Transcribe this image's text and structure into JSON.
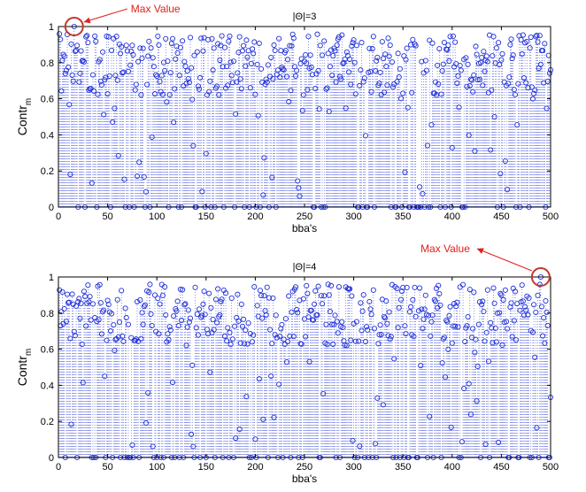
{
  "chart_data": [
    {
      "type": "scatter",
      "title": "|Θ|=3",
      "xlabel": "bba's",
      "ylabel": "Contr",
      "ylabel_sub": "m",
      "xlim": [
        0,
        500
      ],
      "ylim": [
        0,
        1
      ],
      "xticks": [
        "0",
        "50",
        "100",
        "150",
        "200",
        "250",
        "300",
        "350",
        "400",
        "450",
        "500"
      ],
      "yticks": [
        "0",
        "0.2",
        "0.4",
        "0.6",
        "0.8",
        "1"
      ],
      "grid": false,
      "marker": "circle",
      "color": "#1f2fd6",
      "stems": "dotted",
      "annotation": {
        "text": "Max Value",
        "x": 16,
        "y": 1.0
      },
      "seed": 3
    },
    {
      "type": "scatter",
      "title": "|Θ|=4",
      "xlabel": "bba's",
      "ylabel": "Contr",
      "ylabel_sub": "m",
      "xlim": [
        0,
        500
      ],
      "ylim": [
        0,
        1
      ],
      "xticks": [
        "0",
        "50",
        "100",
        "150",
        "200",
        "250",
        "300",
        "350",
        "400",
        "450",
        "500"
      ],
      "yticks": [
        "0",
        "0.2",
        "0.4",
        "0.6",
        "0.8",
        "1"
      ],
      "grid": false,
      "marker": "circle",
      "color": "#1f2fd6",
      "stems": "dotted",
      "annotation": {
        "text": "Max Value",
        "x": 490,
        "y": 1.0
      },
      "seed": 4
    }
  ]
}
